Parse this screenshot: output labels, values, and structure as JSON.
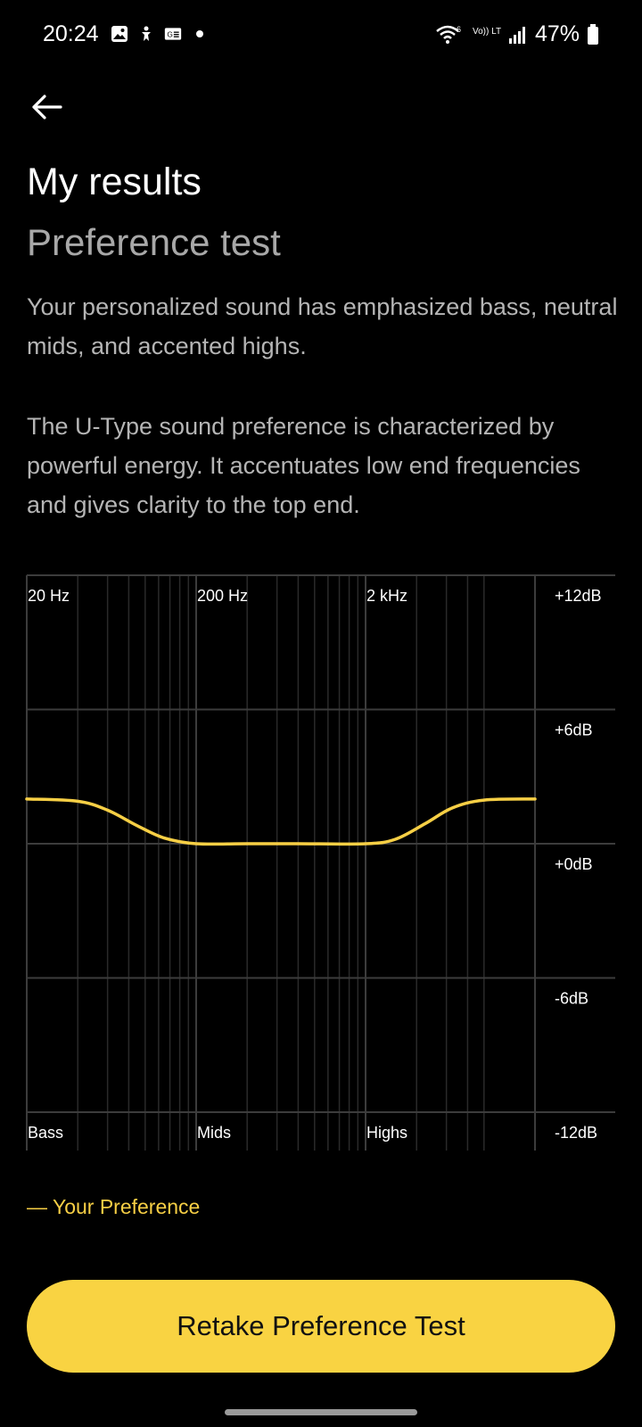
{
  "status_bar": {
    "time": "20:24",
    "battery": "47%",
    "network_label": "Vo)) LTE1",
    "icons_left": [
      "gallery-icon",
      "accessibility-icon",
      "gmail-icon",
      "dot-icon"
    ],
    "icons_right": [
      "wifi-icon",
      "volte-icon",
      "signal-icon",
      "battery-icon"
    ]
  },
  "header": {
    "back_icon": "arrow-left-icon",
    "title": "My results",
    "subtitle": "Preference test"
  },
  "description": {
    "paragraph1": "Your personalized sound has emphasized bass, neutral mids, and accented highs.",
    "paragraph2": "The U-Type sound preference is characterized by powerful energy. It accentuates low end frequencies and gives clarity to the top end."
  },
  "chart_data": {
    "type": "line",
    "x_scale": "log",
    "xlim": [
      20,
      20000
    ],
    "ylim": [
      -12,
      12
    ],
    "x_top_labels": [
      {
        "label": "20 Hz",
        "value": 20
      },
      {
        "label": "200 Hz",
        "value": 200
      },
      {
        "label": "2 kHz",
        "value": 2000
      }
    ],
    "x_bottom_labels": [
      {
        "label": "Bass",
        "value": 20
      },
      {
        "label": "Mids",
        "value": 200
      },
      {
        "label": "Highs",
        "value": 2000
      }
    ],
    "y_labels": [
      {
        "label": "+12dB",
        "value": 12
      },
      {
        "label": "+6dB",
        "value": 6
      },
      {
        "label": "+0dB",
        "value": 0
      },
      {
        "label": "-6dB",
        "value": -6
      },
      {
        "label": "-12dB",
        "value": -12
      }
    ],
    "series": [
      {
        "name": "Your Preference",
        "color": "#f7cf45",
        "points": [
          {
            "x": 20,
            "y": 2
          },
          {
            "x": 40,
            "y": 1.9
          },
          {
            "x": 60,
            "y": 1.5
          },
          {
            "x": 90,
            "y": 0.8
          },
          {
            "x": 130,
            "y": 0.25
          },
          {
            "x": 200,
            "y": 0
          },
          {
            "x": 400,
            "y": 0
          },
          {
            "x": 800,
            "y": 0
          },
          {
            "x": 2000,
            "y": 0
          },
          {
            "x": 3000,
            "y": 0.2
          },
          {
            "x": 4500,
            "y": 0.9
          },
          {
            "x": 6500,
            "y": 1.6
          },
          {
            "x": 10000,
            "y": 1.95
          },
          {
            "x": 20000,
            "y": 2
          }
        ]
      }
    ],
    "grid": true
  },
  "legend": {
    "label": "— Your Preference",
    "color": "#f7cf45"
  },
  "actions": {
    "retake_label": "Retake Preference Test"
  }
}
